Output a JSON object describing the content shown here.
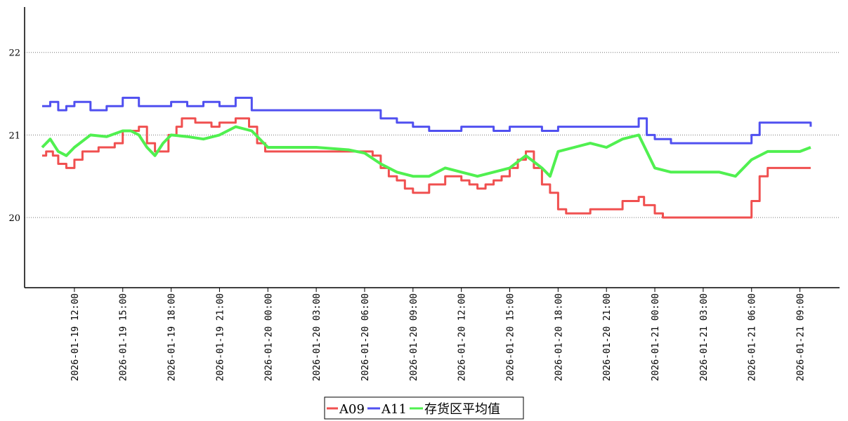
{
  "chart_data": {
    "type": "line",
    "title": "",
    "xlabel": "",
    "ylabel": "",
    "x_range": [
      "2026-01-19 10:00",
      "2026-01-21 10:30"
    ],
    "ylim": [
      19.15,
      22.55
    ],
    "yticks": [
      20,
      21,
      22
    ],
    "ytick_labels": [
      "20",
      "21",
      "22"
    ],
    "xticks": [
      "2026-01-19 12:00",
      "2026-01-19 15:00",
      "2026-01-19 18:00",
      "2026-01-19 21:00",
      "2026-01-20 00:00",
      "2026-01-20 03:00",
      "2026-01-20 06:00",
      "2026-01-20 09:00",
      "2026-01-20 12:00",
      "2026-01-20 15:00",
      "2026-01-20 18:00",
      "2026-01-20 21:00",
      "2026-01-21 00:00",
      "2026-01-21 03:00",
      "2026-01-21 06:00",
      "2026-01-21 09:00"
    ],
    "xtick_labels": [
      "2026-01-19  12:00",
      "2026-01-19  15:00",
      "2026-01-19  18:00",
      "2026-01-19  21:00",
      "2026-01-20  00:00",
      "2026-01-20  03:00",
      "2026-01-20  06:00",
      "2026-01-20  09:00",
      "2026-01-20  12:00",
      "2026-01-20  15:00",
      "2026-01-20  18:00",
      "2026-01-20  21:00",
      "2026-01-21  00:00",
      "2026-01-21  03:00",
      "2026-01-21  06:00",
      "2026-01-21  09:00"
    ],
    "grid": {
      "y": true,
      "x": false,
      "style": "dotted"
    },
    "legend_position": "bottom-center",
    "series": [
      {
        "name": "A09",
        "color": "#f05050",
        "points": [
          [
            "2026-01-19 10:00",
            20.75
          ],
          [
            "2026-01-19 10:15",
            20.8
          ],
          [
            "2026-01-19 10:40",
            20.75
          ],
          [
            "2026-01-19 11:00",
            20.65
          ],
          [
            "2026-01-19 11:30",
            20.6
          ],
          [
            "2026-01-19 12:00",
            20.7
          ],
          [
            "2026-01-19 12:30",
            20.8
          ],
          [
            "2026-01-19 13:30",
            20.85
          ],
          [
            "2026-01-19 14:30",
            20.9
          ],
          [
            "2026-01-19 15:00",
            21.05
          ],
          [
            "2026-01-19 16:00",
            21.1
          ],
          [
            "2026-01-19 16:30",
            20.9
          ],
          [
            "2026-01-19 17:00",
            20.8
          ],
          [
            "2026-01-19 17:50",
            21.0
          ],
          [
            "2026-01-19 18:20",
            21.1
          ],
          [
            "2026-01-19 18:40",
            21.2
          ],
          [
            "2026-01-19 19:30",
            21.15
          ],
          [
            "2026-01-19 20:30",
            21.1
          ],
          [
            "2026-01-19 21:00",
            21.15
          ],
          [
            "2026-01-19 22:00",
            21.2
          ],
          [
            "2026-01-19 22:50",
            21.1
          ],
          [
            "2026-01-19 23:20",
            20.9
          ],
          [
            "2026-01-19 23:50",
            20.8
          ],
          [
            "2026-01-20 01:00",
            20.8
          ],
          [
            "2026-01-20 03:00",
            20.8
          ],
          [
            "2026-01-20 05:00",
            20.8
          ],
          [
            "2026-01-20 06:30",
            20.75
          ],
          [
            "2026-01-20 07:00",
            20.6
          ],
          [
            "2026-01-20 07:30",
            20.5
          ],
          [
            "2026-01-20 08:00",
            20.45
          ],
          [
            "2026-01-20 08:30",
            20.35
          ],
          [
            "2026-01-20 09:00",
            20.3
          ],
          [
            "2026-01-20 10:00",
            20.4
          ],
          [
            "2026-01-20 11:00",
            20.5
          ],
          [
            "2026-01-20 12:00",
            20.45
          ],
          [
            "2026-01-20 12:30",
            20.4
          ],
          [
            "2026-01-20 13:00",
            20.35
          ],
          [
            "2026-01-20 13:30",
            20.4
          ],
          [
            "2026-01-20 14:00",
            20.45
          ],
          [
            "2026-01-20 14:30",
            20.5
          ],
          [
            "2026-01-20 15:00",
            20.6
          ],
          [
            "2026-01-20 15:30",
            20.7
          ],
          [
            "2026-01-20 16:00",
            20.8
          ],
          [
            "2026-01-20 16:30",
            20.6
          ],
          [
            "2026-01-20 17:00",
            20.4
          ],
          [
            "2026-01-20 17:30",
            20.3
          ],
          [
            "2026-01-20 18:00",
            20.1
          ],
          [
            "2026-01-20 18:30",
            20.05
          ],
          [
            "2026-01-20 19:30",
            20.05
          ],
          [
            "2026-01-20 20:00",
            20.1
          ],
          [
            "2026-01-20 21:00",
            20.1
          ],
          [
            "2026-01-20 22:00",
            20.2
          ],
          [
            "2026-01-20 23:00",
            20.25
          ],
          [
            "2026-01-20 23:20",
            20.15
          ],
          [
            "2026-01-21 00:00",
            20.05
          ],
          [
            "2026-01-21 00:30",
            20.0
          ],
          [
            "2026-01-21 02:00",
            20.0
          ],
          [
            "2026-01-21 03:30",
            20.0
          ],
          [
            "2026-01-21 05:30",
            20.0
          ],
          [
            "2026-01-21 06:00",
            20.2
          ],
          [
            "2026-01-21 06:30",
            20.5
          ],
          [
            "2026-01-21 07:00",
            20.6
          ],
          [
            "2026-01-21 08:00",
            20.6
          ],
          [
            "2026-01-21 09:00",
            20.6
          ],
          [
            "2026-01-21 09:40",
            20.6
          ]
        ]
      },
      {
        "name": "A11",
        "color": "#5050f0",
        "points": [
          [
            "2026-01-19 10:00",
            21.35
          ],
          [
            "2026-01-19 10:30",
            21.4
          ],
          [
            "2026-01-19 11:00",
            21.3
          ],
          [
            "2026-01-19 11:30",
            21.35
          ],
          [
            "2026-01-19 12:00",
            21.4
          ],
          [
            "2026-01-19 13:00",
            21.3
          ],
          [
            "2026-01-19 14:00",
            21.35
          ],
          [
            "2026-01-19 15:00",
            21.45
          ],
          [
            "2026-01-19 16:00",
            21.35
          ],
          [
            "2026-01-19 17:00",
            21.35
          ],
          [
            "2026-01-19 18:00",
            21.4
          ],
          [
            "2026-01-19 19:00",
            21.35
          ],
          [
            "2026-01-19 20:00",
            21.4
          ],
          [
            "2026-01-19 21:00",
            21.35
          ],
          [
            "2026-01-19 22:00",
            21.45
          ],
          [
            "2026-01-19 23:00",
            21.3
          ],
          [
            "2026-01-20 00:00",
            21.3
          ],
          [
            "2026-01-20 03:00",
            21.3
          ],
          [
            "2026-01-20 06:00",
            21.3
          ],
          [
            "2026-01-20 07:00",
            21.2
          ],
          [
            "2026-01-20 08:00",
            21.15
          ],
          [
            "2026-01-20 09:00",
            21.1
          ],
          [
            "2026-01-20 10:00",
            21.05
          ],
          [
            "2026-01-20 12:00",
            21.1
          ],
          [
            "2026-01-20 14:00",
            21.05
          ],
          [
            "2026-01-20 15:00",
            21.1
          ],
          [
            "2026-01-20 16:00",
            21.1
          ],
          [
            "2026-01-20 17:00",
            21.05
          ],
          [
            "2026-01-20 18:00",
            21.1
          ],
          [
            "2026-01-20 21:00",
            21.1
          ],
          [
            "2026-01-20 22:30",
            21.1
          ],
          [
            "2026-01-20 23:00",
            21.2
          ],
          [
            "2026-01-20 23:30",
            21.0
          ],
          [
            "2026-01-21 00:00",
            20.95
          ],
          [
            "2026-01-21 01:00",
            20.9
          ],
          [
            "2026-01-21 03:00",
            20.9
          ],
          [
            "2026-01-21 05:00",
            20.9
          ],
          [
            "2026-01-21 06:00",
            21.0
          ],
          [
            "2026-01-21 06:30",
            21.15
          ],
          [
            "2026-01-21 07:30",
            21.15
          ],
          [
            "2026-01-21 09:00",
            21.15
          ],
          [
            "2026-01-21 09:40",
            21.1
          ]
        ]
      },
      {
        "name": "存货区平均值",
        "color": "#50f050",
        "points": [
          [
            "2026-01-19 10:00",
            20.85
          ],
          [
            "2026-01-19 10:30",
            20.95
          ],
          [
            "2026-01-19 11:00",
            20.8
          ],
          [
            "2026-01-19 11:30",
            20.75
          ],
          [
            "2026-01-19 12:00",
            20.85
          ],
          [
            "2026-01-19 13:00",
            21.0
          ],
          [
            "2026-01-19 14:00",
            20.98
          ],
          [
            "2026-01-19 15:00",
            21.05
          ],
          [
            "2026-01-19 15:30",
            21.05
          ],
          [
            "2026-01-19 16:00",
            21.0
          ],
          [
            "2026-01-19 16:30",
            20.85
          ],
          [
            "2026-01-19 17:00",
            20.75
          ],
          [
            "2026-01-19 17:30",
            20.9
          ],
          [
            "2026-01-19 18:00",
            21.0
          ],
          [
            "2026-01-19 19:00",
            20.98
          ],
          [
            "2026-01-19 20:00",
            20.95
          ],
          [
            "2026-01-19 21:00",
            21.0
          ],
          [
            "2026-01-19 22:00",
            21.1
          ],
          [
            "2026-01-19 23:00",
            21.05
          ],
          [
            "2026-01-20 00:00",
            20.85
          ],
          [
            "2026-01-20 01:00",
            20.85
          ],
          [
            "2026-01-20 03:00",
            20.85
          ],
          [
            "2026-01-20 05:00",
            20.82
          ],
          [
            "2026-01-20 06:00",
            20.78
          ],
          [
            "2026-01-20 07:00",
            20.65
          ],
          [
            "2026-01-20 08:00",
            20.55
          ],
          [
            "2026-01-20 09:00",
            20.5
          ],
          [
            "2026-01-20 10:00",
            20.5
          ],
          [
            "2026-01-20 11:00",
            20.6
          ],
          [
            "2026-01-20 12:00",
            20.55
          ],
          [
            "2026-01-20 13:00",
            20.5
          ],
          [
            "2026-01-20 14:00",
            20.55
          ],
          [
            "2026-01-20 15:00",
            20.6
          ],
          [
            "2026-01-20 16:00",
            20.75
          ],
          [
            "2026-01-20 17:00",
            20.6
          ],
          [
            "2026-01-20 17:30",
            20.5
          ],
          [
            "2026-01-20 18:00",
            20.8
          ],
          [
            "2026-01-20 19:00",
            20.85
          ],
          [
            "2026-01-20 20:00",
            20.9
          ],
          [
            "2026-01-20 21:00",
            20.85
          ],
          [
            "2026-01-20 22:00",
            20.95
          ],
          [
            "2026-01-20 23:00",
            21.0
          ],
          [
            "2026-01-20 23:30",
            20.8
          ],
          [
            "2026-01-21 00:00",
            20.6
          ],
          [
            "2026-01-21 01:00",
            20.55
          ],
          [
            "2026-01-21 02:00",
            20.55
          ],
          [
            "2026-01-21 03:00",
            20.55
          ],
          [
            "2026-01-21 04:00",
            20.55
          ],
          [
            "2026-01-21 05:00",
            20.5
          ],
          [
            "2026-01-21 06:00",
            20.7
          ],
          [
            "2026-01-21 07:00",
            20.8
          ],
          [
            "2026-01-21 08:00",
            20.8
          ],
          [
            "2026-01-21 09:00",
            20.8
          ],
          [
            "2026-01-21 09:40",
            20.85
          ]
        ]
      }
    ]
  },
  "legend": {
    "items": [
      {
        "label": "A09",
        "color": "#f05050"
      },
      {
        "label": "A11",
        "color": "#5050f0"
      },
      {
        "label": "存货区平均值",
        "color": "#50f050"
      }
    ]
  }
}
